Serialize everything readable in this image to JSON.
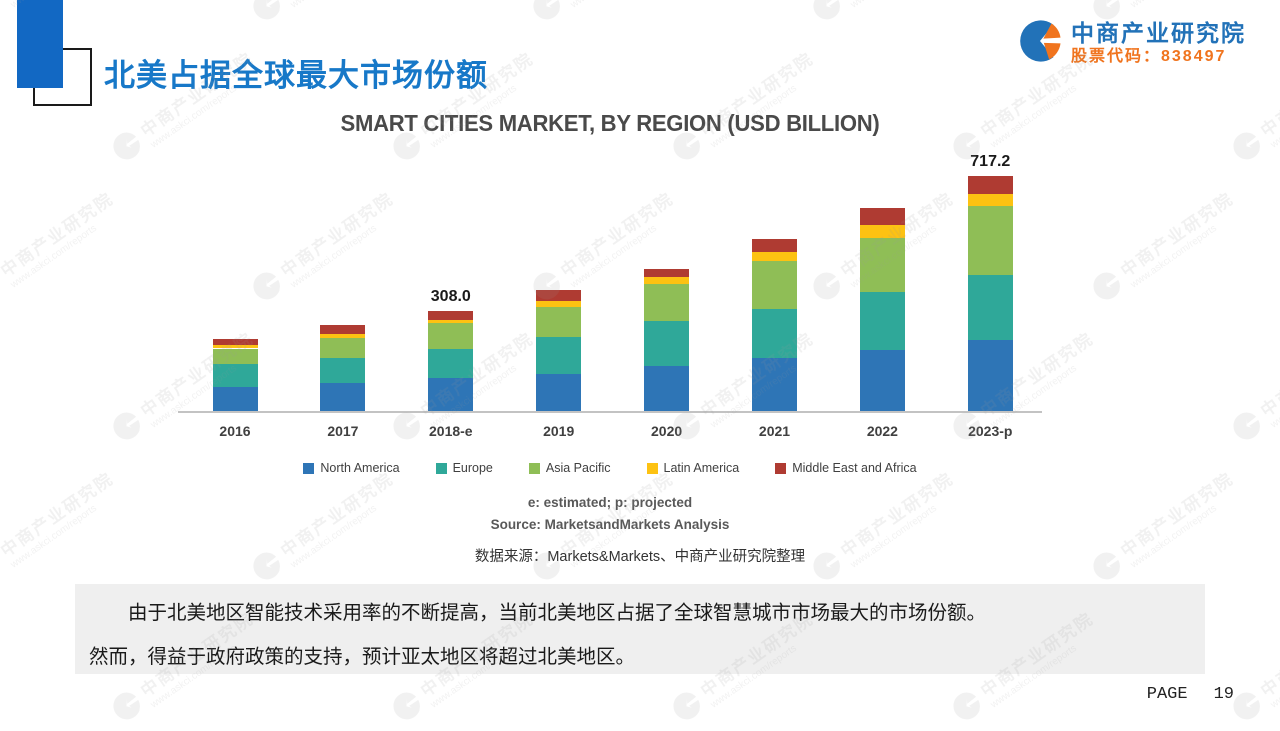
{
  "page": {
    "title": "北美占据全球最大市场份额",
    "page_label": "PAGE",
    "page_number": "19"
  },
  "header": {
    "logo": {
      "name": "中商产业研究院",
      "stock_label": "股票代码：838497",
      "brand_blue": "#2272B8",
      "brand_orange": "#F0741E"
    },
    "title_color": "#1778C8"
  },
  "chart_data": {
    "type": "bar",
    "stacked": true,
    "title": "SMART CITIES MARKET, BY REGION (USD BILLION)",
    "categories": [
      "2016",
      "2017",
      "2018-e",
      "2019",
      "2020",
      "2021",
      "2022",
      "2023-p"
    ],
    "series": [
      {
        "name": "North America",
        "color": "#2E75B6",
        "values": [
          76,
          89,
          103,
          115,
          140,
          164,
          189,
          219.5
        ]
      },
      {
        "name": "Europe",
        "color": "#2FA899",
        "values": [
          71,
          75,
          89,
          113,
          136,
          150,
          176,
          196.8
        ]
      },
      {
        "name": "Asia Pacific",
        "color": "#8FBE56",
        "values": [
          46,
          62,
          77,
          92,
          113,
          146,
          165,
          211.2
        ]
      },
      {
        "name": "Latin America",
        "color": "#FDC212",
        "values": [
          10,
          12,
          12,
          18,
          20,
          26,
          38,
          35.8
        ]
      },
      {
        "name": "Middle East and Africa",
        "color": "#AF3B32",
        "values": [
          18,
          25,
          27,
          34,
          26,
          39,
          51,
          53.9
        ]
      }
    ],
    "totals": [
      221,
      263,
      308.0,
      372,
      435,
      525,
      619,
      717.2
    ],
    "totals_labeled": {
      "2018-e": "308.0",
      "2023-p": "717.2"
    },
    "ylim": [
      0,
      760
    ],
    "grid": false,
    "legend_position": "bottom",
    "notes": [
      "e: estimated; p: projected",
      "Source: MarketsandMarkets Analysis"
    ],
    "source_cn": "数据来源：Markets&Markets、中商产业研究院整理"
  },
  "body": {
    "paragraph_line1": "由于北美地区智能技术采用率的不断提高，当前北美地区占据了全球智慧城市市场最大的市场份额。",
    "paragraph_line2": "然而，得益于政府政策的支持，预计亚太地区将超过北美地区。"
  },
  "watermark": {
    "line1": "中商产业研究院",
    "line2": "www.askci.com/reports"
  }
}
